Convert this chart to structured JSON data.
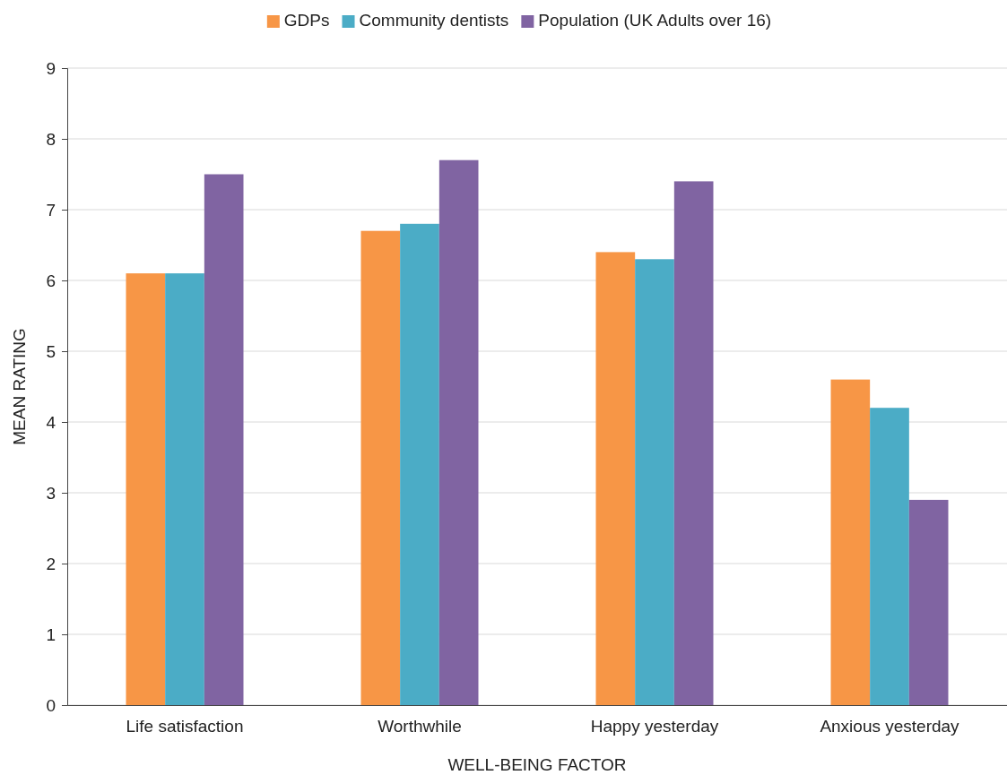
{
  "chart_data": {
    "type": "bar",
    "xlabel": "WELL-BEING FACTOR",
    "ylabel": "MEAN RATING",
    "categories": [
      "Life satisfaction",
      "Worthwhile",
      "Happy yesterday",
      "Anxious yesterday"
    ],
    "series": [
      {
        "name": "GDPs",
        "color": "#f79646",
        "values": [
          6.1,
          6.7,
          6.4,
          4.6
        ]
      },
      {
        "name": "Community dentists",
        "color": "#4bacc6",
        "values": [
          6.1,
          6.8,
          6.3,
          4.2
        ]
      },
      {
        "name": "Population (UK Adults over 16)",
        "color": "#8064a2",
        "values": [
          7.5,
          7.7,
          7.4,
          2.9
        ]
      }
    ],
    "ylim": [
      0,
      9
    ],
    "yticks": [
      0,
      1,
      2,
      3,
      4,
      5,
      6,
      7,
      8,
      9
    ],
    "grid": "y",
    "legend": "top"
  }
}
